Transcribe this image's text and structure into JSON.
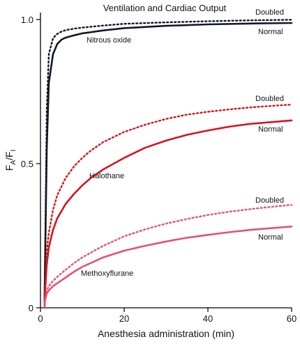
{
  "chart_data": {
    "type": "line",
    "title": "Ventilation and Cardiac Output",
    "xlabel": "Anesthesia administration (min)",
    "ylabel_main": "F",
    "ylabel_sub_a": "A",
    "ylabel_sep": "/F",
    "ylabel_sub_i": "I",
    "xlim": [
      0,
      60
    ],
    "ylim": [
      0,
      1.0
    ],
    "xticks": [
      0,
      20,
      40,
      60
    ],
    "xtick_labels": [
      "0",
      "20",
      "40",
      "60"
    ],
    "yticks": [
      0,
      0.5,
      1.0
    ],
    "ytick_labels": [
      "0",
      "0.5",
      "1.0"
    ],
    "grid": false,
    "annotations": {
      "nitrous_oxide": "Nitrous oxide",
      "halothane": "Halothane",
      "methoxyflurane": "Methoxyflurane",
      "doubled": "Doubled",
      "normal": "Normal"
    },
    "series": [
      {
        "group": "Nitrous oxide",
        "condition": "Normal",
        "color": "#111827",
        "style": "solid",
        "x": [
          1,
          1.5,
          2,
          3,
          4,
          5,
          6,
          8,
          10,
          15,
          20,
          30,
          40,
          50,
          60
        ],
        "y": [
          0.05,
          0.55,
          0.78,
          0.88,
          0.915,
          0.93,
          0.937,
          0.945,
          0.952,
          0.962,
          0.97,
          0.978,
          0.983,
          0.986,
          0.988
        ]
      },
      {
        "group": "Nitrous oxide",
        "condition": "Doubled",
        "color": "#111827",
        "style": "dotted",
        "x": [
          1,
          1.5,
          2,
          3,
          4,
          5,
          6,
          8,
          10,
          15,
          20,
          30,
          40,
          50,
          60
        ],
        "y": [
          0.05,
          0.68,
          0.88,
          0.935,
          0.95,
          0.958,
          0.963,
          0.968,
          0.972,
          0.979,
          0.985,
          0.99,
          0.994,
          0.997,
          0.999
        ]
      },
      {
        "group": "Halothane",
        "condition": "Normal",
        "color": "#d4141c",
        "style": "solid",
        "x": [
          1,
          1.5,
          2,
          3,
          4,
          6,
          8,
          10,
          12,
          15,
          20,
          25,
          30,
          35,
          40,
          45,
          50,
          55,
          60
        ],
        "y": [
          0.03,
          0.15,
          0.21,
          0.27,
          0.31,
          0.36,
          0.395,
          0.425,
          0.45,
          0.48,
          0.52,
          0.555,
          0.58,
          0.6,
          0.615,
          0.628,
          0.638,
          0.644,
          0.65
        ]
      },
      {
        "group": "Halothane",
        "condition": "Doubled",
        "color": "#d4141c",
        "style": "dotted",
        "x": [
          1,
          1.5,
          2,
          3,
          4,
          6,
          8,
          10,
          12,
          15,
          20,
          25,
          30,
          35,
          40,
          45,
          50,
          55,
          60
        ],
        "y": [
          0.03,
          0.2,
          0.26,
          0.34,
          0.39,
          0.45,
          0.49,
          0.52,
          0.545,
          0.575,
          0.61,
          0.635,
          0.655,
          0.67,
          0.68,
          0.688,
          0.695,
          0.7,
          0.705
        ]
      },
      {
        "group": "Methoxyflurane",
        "condition": "Normal",
        "color": "#e8506e",
        "style": "solid",
        "x": [
          1,
          1.5,
          2,
          3,
          4,
          5,
          6,
          8,
          10,
          15,
          20,
          25,
          30,
          35,
          40,
          45,
          50,
          55,
          60
        ],
        "y": [
          0.02,
          0.05,
          0.06,
          0.075,
          0.085,
          0.095,
          0.105,
          0.125,
          0.142,
          0.175,
          0.198,
          0.215,
          0.23,
          0.243,
          0.253,
          0.262,
          0.27,
          0.276,
          0.282
        ]
      },
      {
        "group": "Methoxyflurane",
        "condition": "Doubled",
        "color": "#e8506e",
        "style": "dotted",
        "x": [
          1,
          1.5,
          2,
          3,
          4,
          5,
          6,
          8,
          10,
          15,
          20,
          25,
          30,
          35,
          40,
          45,
          50,
          55,
          60
        ],
        "y": [
          0.02,
          0.06,
          0.075,
          0.093,
          0.107,
          0.12,
          0.132,
          0.155,
          0.175,
          0.215,
          0.248,
          0.272,
          0.292,
          0.308,
          0.322,
          0.333,
          0.342,
          0.35,
          0.357
        ]
      }
    ]
  }
}
